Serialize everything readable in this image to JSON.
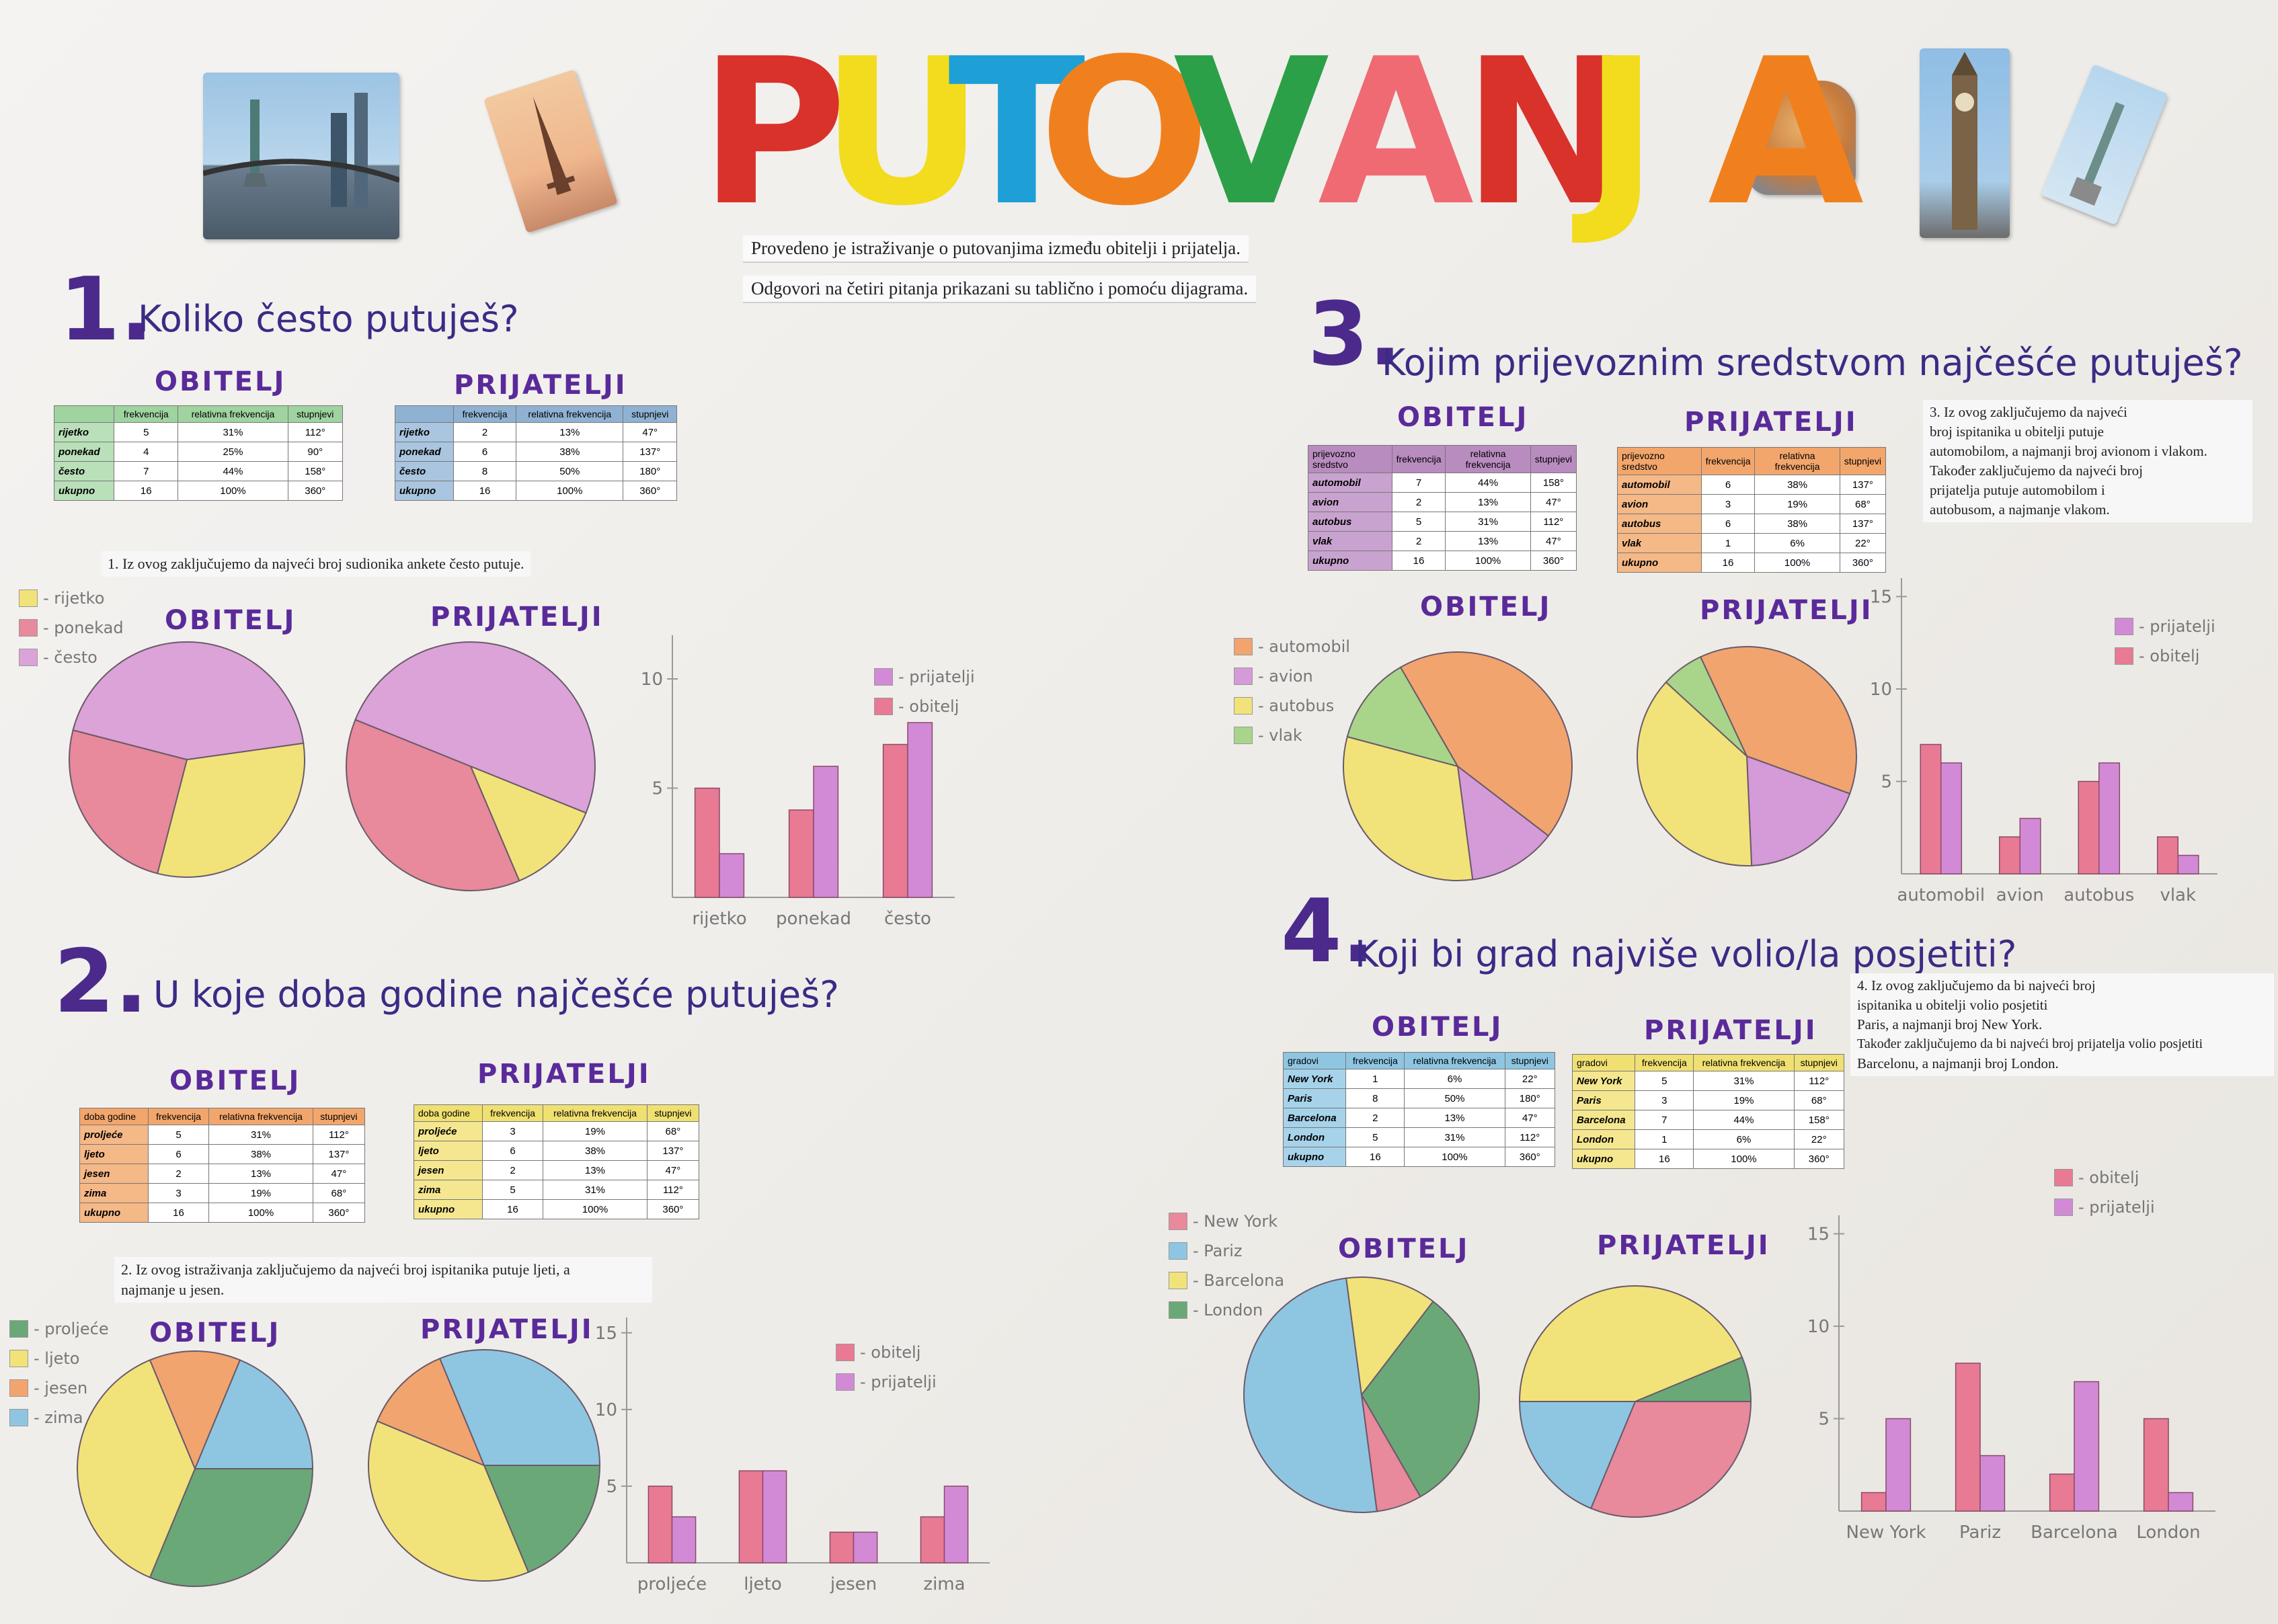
{
  "colors": {
    "title": [
      "#d9322b",
      "#f2dc1d",
      "#1e9fd6",
      "#f0801d",
      "#2ba048",
      "#ef6a72",
      "#d9322b",
      "#f2dc1d",
      "#f0801d"
    ],
    "heading": "#3d2a86",
    "green": "#6aa878",
    "yellow": "#f1e37a",
    "pink": "#e89ab2",
    "purple": "#d59ad8",
    "red_pink": "#e87a93",
    "orange": "#f2a46f",
    "blue": "#8ec6e2",
    "lightgreen": "#a8d58a"
  },
  "title": {
    "letters": [
      "P",
      "U",
      "T",
      "O",
      "V",
      "A",
      "N",
      "J",
      "A"
    ]
  },
  "intro": {
    "line1": "Provedeno je istraživanje o putovanjima između obitelji i prijatelja.",
    "line2": "Odgovori na četiri pitanja prikazani su tablično i pomoću dijagrama."
  },
  "labels": {
    "family": "OBITELJ",
    "friends": "PRIJATELJI"
  },
  "columns": [
    "frekvencija",
    "relativna frekvencija",
    "stupnjevi"
  ],
  "q1": {
    "number": "1.",
    "question": "Koliko često putuješ?",
    "family_table": {
      "header_first": "",
      "rows": [
        [
          "rijetko",
          "5",
          "31%",
          "112°"
        ],
        [
          "ponekad",
          "4",
          "25%",
          "90°"
        ],
        [
          "često",
          "7",
          "44%",
          "158°"
        ],
        [
          "ukupno",
          "16",
          "100%",
          "360°"
        ]
      ]
    },
    "friends_table": {
      "header_first": "",
      "rows": [
        [
          "rijetko",
          "2",
          "13%",
          "47°"
        ],
        [
          "ponekad",
          "6",
          "38%",
          "137°"
        ],
        [
          "često",
          "8",
          "50%",
          "180°"
        ],
        [
          "ukupno",
          "16",
          "100%",
          "360°"
        ]
      ]
    },
    "conclusion": "1. Iz ovog zaključujemo da najveći broj sudionika ankete često putuje.",
    "legend": [
      "- rijetko",
      "- ponekad",
      "- često"
    ],
    "bar_legend": [
      "- prijatelji",
      "- obitelj"
    ]
  },
  "q2": {
    "number": "2.",
    "question": "U koje doba godine najčešće putuješ?",
    "family_table": {
      "header_first": "doba godine",
      "rows": [
        [
          "proljeće",
          "5",
          "31%",
          "112°"
        ],
        [
          "ljeto",
          "6",
          "38%",
          "137°"
        ],
        [
          "jesen",
          "2",
          "13%",
          "47°"
        ],
        [
          "zima",
          "3",
          "19%",
          "68°"
        ],
        [
          "ukupno",
          "16",
          "100%",
          "360°"
        ]
      ]
    },
    "friends_table": {
      "header_first": "doba godine",
      "rows": [
        [
          "proljeće",
          "3",
          "19%",
          "68°"
        ],
        [
          "ljeto",
          "6",
          "38%",
          "137°"
        ],
        [
          "jesen",
          "2",
          "13%",
          "47°"
        ],
        [
          "zima",
          "5",
          "31%",
          "112°"
        ],
        [
          "ukupno",
          "16",
          "100%",
          "360°"
        ]
      ]
    },
    "conclusion_1": "2. Iz ovog istraživanja zaključujemo da najveći broj ispitanika putuje ljeti, a",
    "conclusion_2": "najmanje u jesen.",
    "legend": [
      "- proljeće",
      "- ljeto",
      "- jesen",
      "- zima"
    ],
    "bar_legend": [
      "- obitelj",
      "- prijatelji"
    ]
  },
  "q3": {
    "number": "3.",
    "question": "Kojim prijevoznim sredstvom najčešće putuješ?",
    "family_table": {
      "header_first": "prijevozno sredstvo",
      "rows": [
        [
          "automobil",
          "7",
          "44%",
          "158°"
        ],
        [
          "avion",
          "2",
          "13%",
          "47°"
        ],
        [
          "autobus",
          "5",
          "31%",
          "112°"
        ],
        [
          "vlak",
          "2",
          "13%",
          "47°"
        ],
        [
          "ukupno",
          "16",
          "100%",
          "360°"
        ]
      ]
    },
    "friends_table": {
      "header_first": "prijevozno sredstvo",
      "rows": [
        [
          "automobil",
          "6",
          "38%",
          "137°"
        ],
        [
          "avion",
          "3",
          "19%",
          "68°"
        ],
        [
          "autobus",
          "6",
          "38%",
          "137°"
        ],
        [
          "vlak",
          "1",
          "6%",
          "22°"
        ],
        [
          "ukupno",
          "16",
          "100%",
          "360°"
        ]
      ]
    },
    "conclusion": [
      "3. Iz ovog zaključujemo da najveći",
      "broj ispitanika u obitelji putuje",
      "automobilom, a najmanji broj avionom i vlakom.",
      "Također zaključujemo da najveći broj",
      "prijatelja putuje automobilom i",
      "autobusom, a najmanje vlakom."
    ],
    "legend": [
      "- automobil",
      "- avion",
      "- autobus",
      "- vlak"
    ],
    "bar_legend": [
      "- prijatelji",
      "- obitelj"
    ]
  },
  "q4": {
    "number": "4.",
    "question": "Koji bi grad najviše volio/la posjetiti?",
    "family_table": {
      "header_first": "gradovi",
      "rows": [
        [
          "New York",
          "1",
          "6%",
          "22°"
        ],
        [
          "Paris",
          "8",
          "50%",
          "180°"
        ],
        [
          "Barcelona",
          "2",
          "13%",
          "47°"
        ],
        [
          "London",
          "5",
          "31%",
          "112°"
        ],
        [
          "ukupno",
          "16",
          "100%",
          "360°"
        ]
      ]
    },
    "friends_table": {
      "header_first": "gradovi",
      "rows": [
        [
          "New York",
          "5",
          "31%",
          "112°"
        ],
        [
          "Paris",
          "3",
          "19%",
          "68°"
        ],
        [
          "Barcelona",
          "7",
          "44%",
          "158°"
        ],
        [
          "London",
          "1",
          "6%",
          "22°"
        ],
        [
          "ukupno",
          "16",
          "100%",
          "360°"
        ]
      ]
    },
    "conclusion": [
      "4. Iz ovog zaključujemo da bi najveći broj",
      "ispitanika u obitelji volio posjetiti",
      "Paris, a najmanji broj New York.",
      "Također zaključujemo da bi najveći broj prijatelja volio posjetiti",
      "Barcelonu, a najmanji broj London."
    ],
    "legend": [
      "- New York",
      "- Pariz",
      "- Barcelona",
      "- London"
    ],
    "bar_legend": [
      "- obitelj",
      "- prijatelji"
    ]
  },
  "chart_data": [
    {
      "id": "q1-family-pie",
      "type": "pie",
      "categories": [
        "rijetko",
        "ponekad",
        "često"
      ],
      "values": [
        5,
        4,
        7
      ],
      "colors": [
        "#f1e37a",
        "#e8899c",
        "#dca3d8"
      ],
      "start_deg": -8
    },
    {
      "id": "q1-friends-pie",
      "type": "pie",
      "categories": [
        "rijetko",
        "ponekad",
        "često"
      ],
      "values": [
        2,
        6,
        8
      ],
      "colors": [
        "#f1e37a",
        "#e8899c",
        "#dca3d8"
      ],
      "start_deg": 22
    },
    {
      "id": "q1-bars",
      "type": "bar",
      "categories": [
        "rijetko",
        "ponekad",
        "često"
      ],
      "series": [
        {
          "name": "obitelj",
          "values": [
            5,
            4,
            7
          ],
          "color": "#e87a93"
        },
        {
          "name": "prijatelji",
          "values": [
            2,
            6,
            8
          ],
          "color": "#d28ad6"
        }
      ],
      "yticks": [
        5,
        10
      ],
      "ylim": [
        0,
        12
      ]
    },
    {
      "id": "q2-family-pie",
      "type": "pie",
      "categories": [
        "proljeće",
        "ljeto",
        "jesen",
        "zima"
      ],
      "values": [
        5,
        6,
        2,
        3
      ],
      "colors": [
        "#6aa878",
        "#f1e37a",
        "#f2a46f",
        "#8ec6e2"
      ],
      "start_deg": 0
    },
    {
      "id": "q2-friends-pie",
      "type": "pie",
      "categories": [
        "proljeće",
        "ljeto",
        "jesen",
        "zima"
      ],
      "values": [
        3,
        6,
        2,
        5
      ],
      "colors": [
        "#6aa878",
        "#f1e37a",
        "#f2a46f",
        "#8ec6e2"
      ],
      "start_deg": 0
    },
    {
      "id": "q2-bars",
      "type": "bar",
      "categories": [
        "proljeće",
        "ljeto",
        "jesen",
        "zima"
      ],
      "series": [
        {
          "name": "obitelj",
          "values": [
            5,
            6,
            2,
            3
          ],
          "color": "#e87a93"
        },
        {
          "name": "prijatelji",
          "values": [
            3,
            6,
            2,
            5
          ],
          "color": "#d28ad6"
        }
      ],
      "yticks": [
        5,
        10,
        15
      ],
      "ylim": [
        0,
        16
      ]
    },
    {
      "id": "q3-family-pie",
      "type": "pie",
      "categories": [
        "automobil",
        "avion",
        "autobus",
        "vlak"
      ],
      "values": [
        7,
        2,
        5,
        2
      ],
      "colors": [
        "#f2a46f",
        "#d59ad8",
        "#f1e37a",
        "#a8d58a"
      ],
      "start_deg": 240
    },
    {
      "id": "q3-friends-pie",
      "type": "pie",
      "categories": [
        "automobil",
        "avion",
        "autobus",
        "vlak"
      ],
      "values": [
        6,
        3,
        6,
        1
      ],
      "colors": [
        "#f2a46f",
        "#d59ad8",
        "#f1e37a",
        "#a8d58a"
      ],
      "start_deg": 245
    },
    {
      "id": "q3-bars",
      "type": "bar",
      "categories": [
        "automobil",
        "avion",
        "autobus",
        "vlak"
      ],
      "series": [
        {
          "name": "obitelj",
          "values": [
            7,
            2,
            5,
            2
          ],
          "color": "#e87a93"
        },
        {
          "name": "prijatelji",
          "values": [
            6,
            3,
            6,
            1
          ],
          "color": "#d28ad6"
        }
      ],
      "yticks": [
        5,
        10,
        15
      ],
      "ylim": [
        0,
        16
      ]
    },
    {
      "id": "q4-family-pie",
      "type": "pie",
      "categories": [
        "New York",
        "Paris",
        "Barcelona",
        "London"
      ],
      "values": [
        1,
        8,
        2,
        5
      ],
      "colors": [
        "#e8899c",
        "#8ec6e2",
        "#f1e37a",
        "#6aa878"
      ],
      "start_deg": 60
    },
    {
      "id": "q4-friends-pie",
      "type": "pie",
      "categories": [
        "New York",
        "Paris",
        "Barcelona",
        "London"
      ],
      "values": [
        5,
        3,
        7,
        1
      ],
      "colors": [
        "#e8899c",
        "#8ec6e2",
        "#f1e37a",
        "#6aa878"
      ],
      "start_deg": 0
    },
    {
      "id": "q4-bars",
      "type": "bar",
      "categories": [
        "New York",
        "Pariz",
        "Barcelona",
        "London"
      ],
      "series": [
        {
          "name": "obitelj",
          "values": [
            1,
            8,
            2,
            5
          ],
          "color": "#e87a93"
        },
        {
          "name": "prijatelji",
          "values": [
            5,
            3,
            7,
            1
          ],
          "color": "#d28ad6"
        }
      ],
      "yticks": [
        5,
        10,
        15
      ],
      "ylim": [
        0,
        16
      ]
    }
  ]
}
